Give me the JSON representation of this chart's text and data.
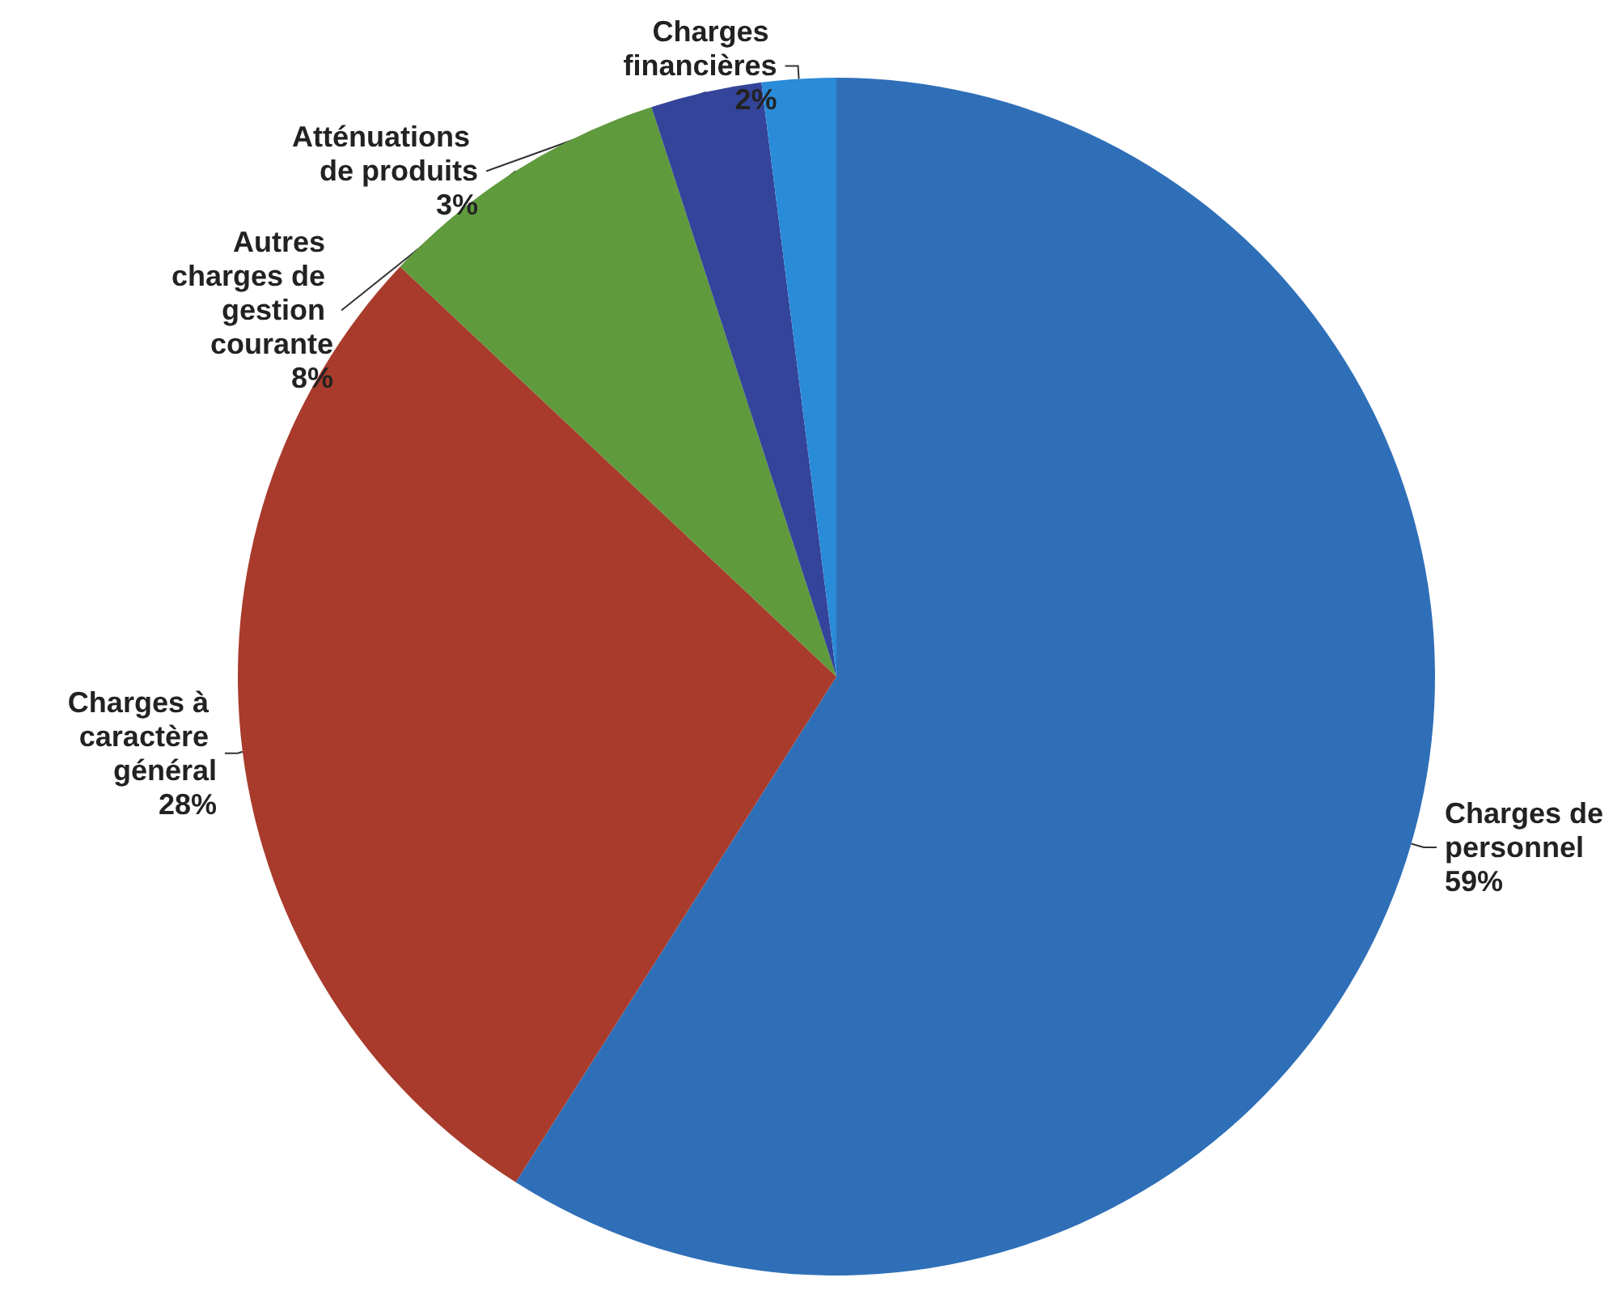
{
  "chart_data": {
    "type": "pie",
    "categories": [
      "Charges de personnel",
      "Charges à caractère général",
      "Autres charges de gestion courante",
      "Atténuations de produits",
      "Charges financières"
    ],
    "values": [
      59,
      28,
      8,
      3,
      2
    ],
    "colors": [
      "#2f6fb8",
      "#a83b2c",
      "#5f9a3c",
      "#34449a",
      "#2a8bd8"
    ],
    "value_labels": [
      "59%",
      "28%",
      "8%",
      "3%",
      "2%"
    ],
    "legend": false
  }
}
